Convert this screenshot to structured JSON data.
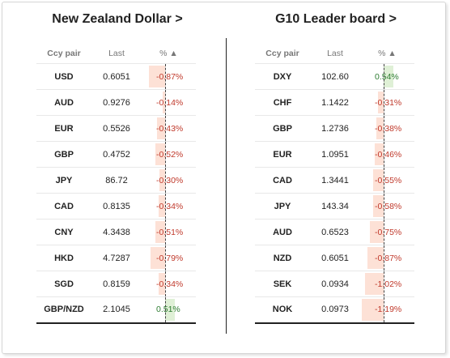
{
  "colors": {
    "negative_bar": "#fde1d6",
    "positive_bar": "#dff0d6",
    "negative_text": "#c0392b",
    "positive_text": "#2e7d32",
    "accent": "#222222"
  },
  "left": {
    "title": "New Zealand Dollar >",
    "headers": {
      "ccy": "Ccy pair",
      "last": "Last",
      "pct": "% ▲"
    },
    "rows": [
      {
        "ccy": "USD",
        "last": "0.6051",
        "pct": "-0.87%",
        "value": -0.87
      },
      {
        "ccy": "AUD",
        "last": "0.9276",
        "pct": "-0.14%",
        "value": -0.14
      },
      {
        "ccy": "EUR",
        "last": "0.5526",
        "pct": "-0.43%",
        "value": -0.43
      },
      {
        "ccy": "GBP",
        "last": "0.4752",
        "pct": "-0.52%",
        "value": -0.52
      },
      {
        "ccy": "JPY",
        "last": "86.72",
        "pct": "-0.30%",
        "value": -0.3
      },
      {
        "ccy": "CAD",
        "last": "0.8135",
        "pct": "-0.34%",
        "value": -0.34
      },
      {
        "ccy": "CNY",
        "last": "4.3438",
        "pct": "-0.51%",
        "value": -0.51
      },
      {
        "ccy": "HKD",
        "last": "4.7287",
        "pct": "-0.79%",
        "value": -0.79
      },
      {
        "ccy": "SGD",
        "last": "0.8159",
        "pct": "-0.34%",
        "value": -0.34
      },
      {
        "ccy": "GBP/NZD",
        "last": "2.1045",
        "pct": "0.51%",
        "value": 0.51
      }
    ]
  },
  "right": {
    "title": "G10 Leader board >",
    "headers": {
      "ccy": "Ccy pair",
      "last": "Last",
      "pct": "% ▲"
    },
    "rows": [
      {
        "ccy": "DXY",
        "last": "102.60",
        "pct": "0.54%",
        "value": 0.54
      },
      {
        "ccy": "CHF",
        "last": "1.1422",
        "pct": "-0.31%",
        "value": -0.31
      },
      {
        "ccy": "GBP",
        "last": "1.2736",
        "pct": "-0.38%",
        "value": -0.38
      },
      {
        "ccy": "EUR",
        "last": "1.0951",
        "pct": "-0.46%",
        "value": -0.46
      },
      {
        "ccy": "CAD",
        "last": "1.3441",
        "pct": "-0.55%",
        "value": -0.55
      },
      {
        "ccy": "JPY",
        "last": "143.34",
        "pct": "-0.58%",
        "value": -0.58
      },
      {
        "ccy": "AUD",
        "last": "0.6523",
        "pct": "-0.75%",
        "value": -0.75
      },
      {
        "ccy": "NZD",
        "last": "0.6051",
        "pct": "-0.87%",
        "value": -0.87
      },
      {
        "ccy": "SEK",
        "last": "0.0934",
        "pct": "-1.02%",
        "value": -1.02
      },
      {
        "ccy": "NOK",
        "last": "0.0973",
        "pct": "-1.19%",
        "value": -1.19
      }
    ]
  }
}
